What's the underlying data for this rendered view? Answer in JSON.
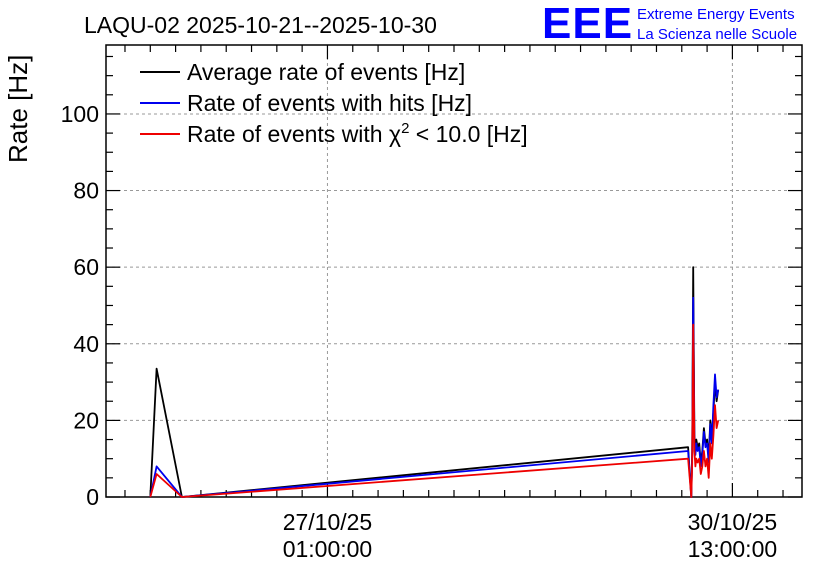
{
  "chart_data": {
    "type": "line",
    "title": "LAQU-02 2025-10-21--2025-10-30",
    "ylabel": "Rate [Hz]",
    "xlabel": "",
    "ylim": [
      0,
      118
    ],
    "yticks": [
      0,
      20,
      40,
      60,
      80,
      100
    ],
    "xlim_hours": [
      0,
      220
    ],
    "xticks": [
      {
        "hour": 70,
        "date": "27/10/25",
        "time": "01:00:00"
      },
      {
        "hour": 198,
        "date": "30/10/25",
        "time": "13:00:00"
      }
    ],
    "legend": {
      "placement": "top-left",
      "entries": [
        {
          "name": "Average rate of events [Hz]",
          "color": "#000000"
        },
        {
          "name": "Rate of events with hits [Hz]",
          "color": "#0000ee"
        },
        {
          "name_prefix": "Rate of events with ",
          "symbol": "χ",
          "superscript": "2",
          "name_suffix": " < 10.0 [Hz]",
          "color": "#ee0000"
        }
      ]
    },
    "x": [
      14,
      16,
      24,
      184,
      185,
      185.3,
      185.6,
      186,
      186.3,
      186.6,
      187,
      187.5,
      188,
      188.5,
      189,
      189.5,
      190,
      190.5,
      191,
      191.5,
      192,
      192.5,
      193,
      193.5
    ],
    "series": [
      {
        "name": "Average rate of events [Hz]",
        "color": "#000000",
        "values": [
          0,
          33.5,
          0,
          13,
          0,
          12,
          60,
          16,
          12,
          15,
          13,
          14,
          9,
          12,
          18,
          14,
          15,
          10,
          20,
          15,
          22,
          30,
          25,
          28
        ]
      },
      {
        "name": "Rate of events with hits [Hz]",
        "color": "#0000ee",
        "values": [
          0,
          8,
          0,
          12,
          0,
          11,
          52,
          14,
          11,
          14,
          12,
          13,
          8,
          11,
          17,
          13,
          14,
          9,
          19,
          14,
          24,
          32,
          26,
          28
        ]
      },
      {
        "name": "Rate of events with chi2 < 10.0 [Hz]",
        "color": "#ee0000",
        "values": [
          0,
          6,
          0,
          10,
          0,
          9,
          45,
          12,
          8,
          10,
          9,
          10,
          6,
          8,
          12,
          8,
          10,
          5,
          14,
          10,
          16,
          24,
          18,
          20
        ]
      }
    ]
  },
  "logo": {
    "text": "EEE",
    "line1": "Extreme Energy Events",
    "line2": "La Scienza nelle Scuole",
    "color": "#0000ff"
  }
}
